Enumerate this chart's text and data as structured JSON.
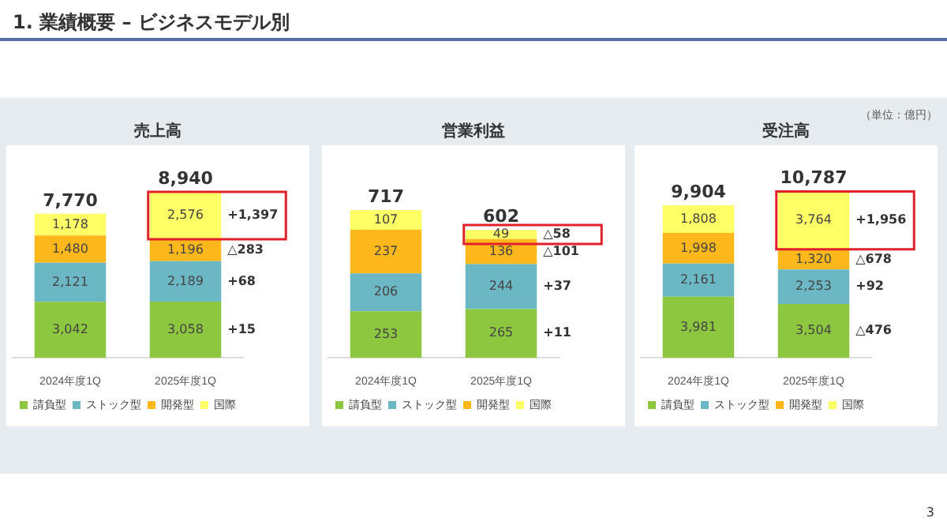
{
  "chart_data": [
    {
      "type": "bar",
      "title": "売上高",
      "stacked": true,
      "legend": "bottom",
      "tick_labels": "x",
      "categories": [
        "2024年度1Q",
        "2025年度1Q"
      ],
      "series": [
        {
          "name": "請負型",
          "color": "#8dc63f",
          "values": [
            3042,
            3058
          ],
          "value_labels": [
            "3,042",
            "3,058"
          ]
        },
        {
          "name": "ストック型",
          "color": "#6bb7c4",
          "values": [
            2121,
            2189
          ],
          "value_labels": [
            "2,121",
            "2,189"
          ]
        },
        {
          "name": "開発型",
          "color": "#ffb81c",
          "values": [
            1480,
            1196
          ],
          "value_labels": [
            "1,480",
            "1,196"
          ]
        },
        {
          "name": "国際",
          "color": "#ffff66",
          "values": [
            1178,
            2576
          ],
          "value_labels": [
            "1,178",
            "2,576"
          ]
        }
      ],
      "annotations": [
        "1. 業績概要 – ビジネスモデル別",
        "7,770",
        "8,940",
        "+15",
        "+68",
        "△283",
        "+1,397"
      ]
    },
    {
      "type": "bar",
      "title": "営業利益",
      "stacked": true,
      "legend": "bottom",
      "tick_labels": "x",
      "categories": [
        "2024年度1Q",
        "2025年度1Q"
      ],
      "series": [
        {
          "name": "請負型",
          "color": "#8dc63f",
          "values": [
            253,
            265
          ],
          "value_labels": [
            "253",
            "265"
          ]
        },
        {
          "name": "ストック型",
          "color": "#6bb7c4",
          "values": [
            206,
            244
          ],
          "value_labels": [
            "206",
            "244"
          ]
        },
        {
          "name": "開発型",
          "color": "#ffb81c",
          "values": [
            237,
            136
          ],
          "value_labels": [
            "237",
            "136"
          ]
        },
        {
          "name": "国際",
          "color": "#ffff66",
          "values": [
            107,
            49
          ],
          "value_labels": [
            "107",
            "49"
          ]
        }
      ],
      "annotations": [
        "717",
        "602",
        "+11",
        "+37",
        "△101",
        "△58"
      ]
    },
    {
      "type": "bar",
      "title": "受注高",
      "stacked": true,
      "legend": "bottom",
      "tick_labels": "x",
      "categories": [
        "2024年度1Q",
        "2025年度1Q"
      ],
      "series": [
        {
          "name": "請負型",
          "color": "#8dc63f",
          "values": [
            3981,
            3504
          ],
          "value_labels": [
            "3,981",
            "3,504"
          ]
        },
        {
          "name": "ストック型",
          "color": "#6bb7c4",
          "values": [
            2161,
            2253
          ],
          "value_labels": [
            "2,161",
            "2,253"
          ]
        },
        {
          "name": "開発型",
          "color": "#ffb81c",
          "values": [
            1998,
            1320
          ],
          "value_labels": [
            "1,998",
            "1,320"
          ]
        },
        {
          "name": "国際",
          "color": "#ffff66",
          "values": [
            1808,
            3764
          ],
          "value_labels": [
            "1,808",
            "3,764"
          ]
        }
      ],
      "annotations": [
        "（単位：億円）",
        "3",
        "9,904",
        "10,787",
        "△476",
        "+92",
        "△678",
        "+1,956"
      ]
    }
  ]
}
